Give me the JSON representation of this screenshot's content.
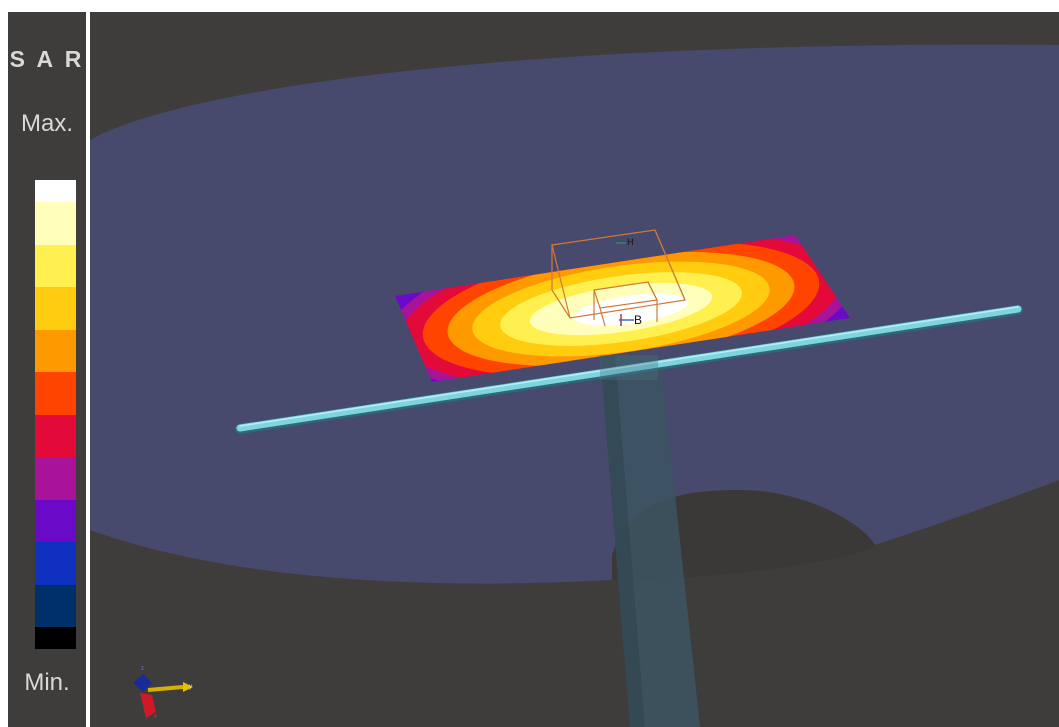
{
  "legend": {
    "title": "S A R",
    "max_label": "Max.",
    "min_label": "Min.",
    "colors": [
      "#ffffff",
      "#ffffbb",
      "#fff050",
      "#ffcc10",
      "#ff9900",
      "#ff4400",
      "#e30a3a",
      "#a8139a",
      "#6a0ac8",
      "#1030c0",
      "#00306a",
      "#000000"
    ]
  },
  "scene": {
    "labels": {
      "probe_top": "H",
      "probe_bottom": "B"
    },
    "axes": {
      "y_label": "y",
      "x_label": "x",
      "z_label": "z"
    },
    "colors": {
      "background": "#3f3d3b",
      "disc": "#474a6c",
      "dipole": "#7fd4e0",
      "box_outline": "#d07838"
    }
  }
}
